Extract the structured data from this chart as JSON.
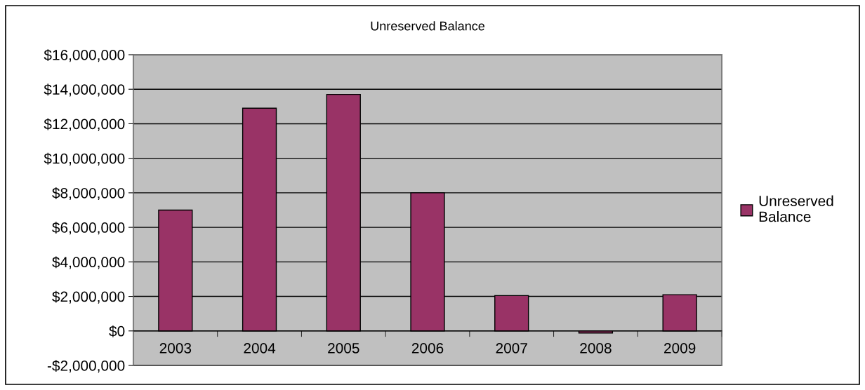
{
  "chart_data": {
    "type": "bar",
    "title": "Unreserved Balance",
    "categories": [
      "2003",
      "2004",
      "2005",
      "2006",
      "2007",
      "2008",
      "2009"
    ],
    "series": [
      {
        "name": "Unreserved Balance",
        "color": "#993366",
        "values": [
          7000000,
          12900000,
          13700000,
          8000000,
          2050000,
          -120000,
          2100000
        ]
      }
    ],
    "ylim": [
      -2000000,
      16000000
    ],
    "yticks": [
      {
        "value": -2000000,
        "label": "-$2,000,000"
      },
      {
        "value": 0,
        "label": "$0"
      },
      {
        "value": 2000000,
        "label": "$2,000,000"
      },
      {
        "value": 4000000,
        "label": "$4,000,000"
      },
      {
        "value": 6000000,
        "label": "$6,000,000"
      },
      {
        "value": 8000000,
        "label": "$8,000,000"
      },
      {
        "value": 10000000,
        "label": "$10,000,000"
      },
      {
        "value": 12000000,
        "label": "$12,000,000"
      },
      {
        "value": 14000000,
        "label": "$14,000,000"
      },
      {
        "value": 16000000,
        "label": "$16,000,000"
      }
    ],
    "grid": "y",
    "legend": "right"
  }
}
